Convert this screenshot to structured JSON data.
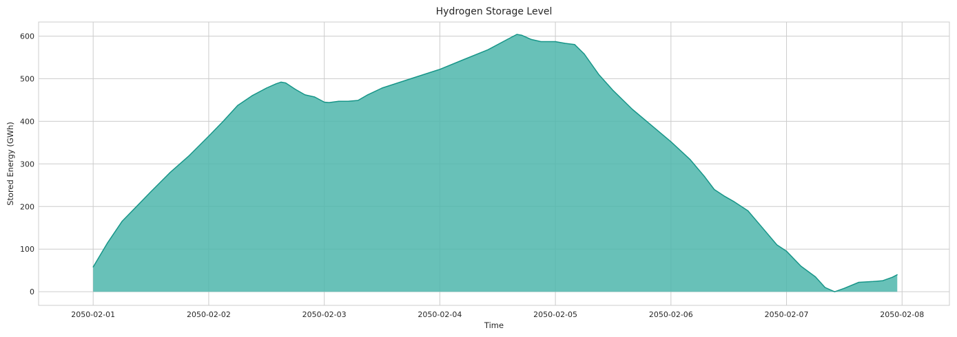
{
  "chart_data": {
    "type": "area",
    "title": "Hydrogen Storage Level",
    "xlabel": "Time",
    "ylabel": "Stored Energy (GWh)",
    "x_tick_labels": [
      "2050-02-01",
      "2050-02-02",
      "2050-02-03",
      "2050-02-04",
      "2050-02-05",
      "2050-02-06",
      "2050-02-07",
      "2050-02-08"
    ],
    "y_ticks": [
      0,
      100,
      200,
      300,
      400,
      500,
      600
    ],
    "xlim": [
      "2050-01-31 12:40",
      "2050-02-08 09:50"
    ],
    "ylim": [
      -32,
      633
    ],
    "grid": true,
    "colors": {
      "fill": "#4db6ac",
      "line": "#179588"
    },
    "series": [
      {
        "x": [
          "2050-02-01 00:00",
          "2050-02-01 03:00",
          "2050-02-01 06:00",
          "2050-02-01 09:00",
          "2050-02-01 12:00",
          "2050-02-01 16:00",
          "2050-02-01 20:00",
          "2050-02-02 00:00",
          "2050-02-02 03:00",
          "2050-02-02 06:00",
          "2050-02-02 09:00",
          "2050-02-02 12:00",
          "2050-02-02 14:00",
          "2050-02-02 15:00",
          "2050-02-02 16:00",
          "2050-02-02 18:00",
          "2050-02-02 20:00",
          "2050-02-02 22:00",
          "2050-02-03 00:00",
          "2050-02-03 01:00",
          "2050-02-03 03:00",
          "2050-02-03 05:00",
          "2050-02-03 07:00",
          "2050-02-03 09:00",
          "2050-02-03 12:00",
          "2050-02-03 18:00",
          "2050-02-04 00:00",
          "2050-02-04 05:00",
          "2050-02-04 10:00",
          "2050-02-04 14:00",
          "2050-02-04 16:00",
          "2050-02-04 17:00",
          "2050-02-04 19:00",
          "2050-02-04 21:00",
          "2050-02-05 00:00",
          "2050-02-05 02:00",
          "2050-02-05 04:00",
          "2050-02-05 06:00",
          "2050-02-05 09:00",
          "2050-02-05 12:00",
          "2050-02-05 16:00",
          "2050-02-05 20:00",
          "2050-02-06 00:00",
          "2050-02-06 04:00",
          "2050-02-06 07:00",
          "2050-02-06 09:00",
          "2050-02-06 11:00",
          "2050-02-06 13:00",
          "2050-02-06 16:00",
          "2050-02-06 19:00",
          "2050-02-06 22:00",
          "2050-02-07 00:00",
          "2050-02-07 03:00",
          "2050-02-07 06:00",
          "2050-02-07 08:00",
          "2050-02-07 10:00",
          "2050-02-07 12:00",
          "2050-02-07 15:00",
          "2050-02-07 18:00",
          "2050-02-07 20:00",
          "2050-02-07 22:00",
          "2050-02-07 23:00"
        ],
        "values": [
          58,
          115,
          165,
          200,
          235,
          280,
          320,
          365,
          400,
          437,
          460,
          478,
          488,
          492,
          490,
          475,
          462,
          457,
          445,
          444,
          447,
          447,
          449,
          462,
          478,
          500,
          522,
          545,
          568,
          592,
          604,
          602,
          592,
          587,
          587,
          583,
          580,
          558,
          510,
          472,
          428,
          390,
          352,
          310,
          270,
          240,
          225,
          212,
          190,
          150,
          110,
          95,
          60,
          35,
          10,
          0,
          8,
          22,
          24,
          26,
          34,
          40
        ]
      }
    ]
  }
}
